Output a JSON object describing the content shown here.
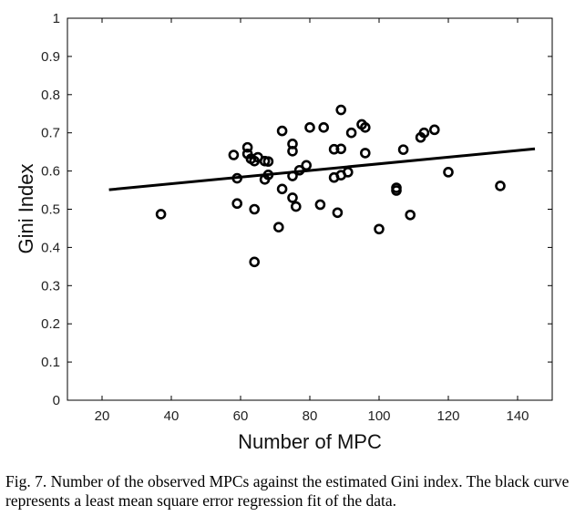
{
  "chart_data": {
    "type": "scatter",
    "title": "",
    "xlabel": "Number of MPC",
    "ylabel": "Gini Index",
    "xlim": [
      10,
      150
    ],
    "ylim": [
      0,
      1
    ],
    "xticks": [
      20,
      40,
      60,
      80,
      100,
      120,
      140
    ],
    "yticks": [
      0,
      0.1,
      0.2,
      0.3,
      0.4,
      0.5,
      0.6,
      0.7,
      0.8,
      0.9,
      1
    ],
    "ytick_labels": [
      "0",
      "0.1",
      "0.2",
      "0.3",
      "0.4",
      "0.5",
      "0.6",
      "0.7",
      "0.8",
      "0.9",
      "1"
    ],
    "grid": false,
    "marker": "circle",
    "points": [
      [
        37,
        0.487
      ],
      [
        58,
        0.642
      ],
      [
        59,
        0.581
      ],
      [
        59,
        0.515
      ],
      [
        62,
        0.662
      ],
      [
        62,
        0.645
      ],
      [
        63,
        0.632
      ],
      [
        64,
        0.5
      ],
      [
        64,
        0.626
      ],
      [
        64,
        0.362
      ],
      [
        65,
        0.636
      ],
      [
        67,
        0.578
      ],
      [
        67,
        0.626
      ],
      [
        68,
        0.625
      ],
      [
        68,
        0.59
      ],
      [
        71,
        0.453
      ],
      [
        72,
        0.705
      ],
      [
        72,
        0.553
      ],
      [
        75,
        0.671
      ],
      [
        75,
        0.652
      ],
      [
        75,
        0.587
      ],
      [
        75,
        0.53
      ],
      [
        76,
        0.507
      ],
      [
        77,
        0.602
      ],
      [
        79,
        0.615
      ],
      [
        80,
        0.714
      ],
      [
        83,
        0.512
      ],
      [
        84,
        0.714
      ],
      [
        87,
        0.657
      ],
      [
        87,
        0.583
      ],
      [
        88,
        0.491
      ],
      [
        89,
        0.76
      ],
      [
        89,
        0.658
      ],
      [
        89,
        0.589
      ],
      [
        91,
        0.597
      ],
      [
        92,
        0.7
      ],
      [
        95,
        0.722
      ],
      [
        96,
        0.714
      ],
      [
        96,
        0.647
      ],
      [
        100,
        0.448
      ],
      [
        105,
        0.556
      ],
      [
        105,
        0.549
      ],
      [
        107,
        0.656
      ],
      [
        109,
        0.485
      ],
      [
        112,
        0.688
      ],
      [
        113,
        0.7
      ],
      [
        116,
        0.708
      ],
      [
        120,
        0.597
      ],
      [
        135,
        0.561
      ]
    ],
    "fit_line": {
      "x": [
        22,
        145
      ],
      "y": [
        0.551,
        0.658
      ]
    },
    "caption": "Fig. 7.   Number of the observed MPCs against the estimated Gini index. The black curve represents a least mean square error regression fit of the data."
  }
}
